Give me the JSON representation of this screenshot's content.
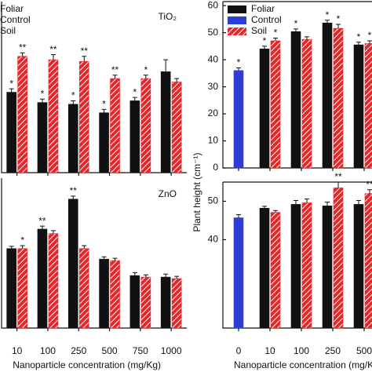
{
  "chart_data": [
    {
      "type": "bar",
      "title": "TiO₂",
      "ylim": [
        0,
        100
      ],
      "series": [
        {
          "name": "Foliar",
          "color": "#111111",
          "values": [
            47,
            41,
            40,
            35,
            42,
            59
          ],
          "errors": [
            2,
            2,
            2,
            2,
            2,
            7
          ],
          "labels": [
            "*",
            "*",
            "*",
            "*",
            "*",
            null
          ]
        },
        {
          "name": "Control",
          "color": "#2b3fd6",
          "values": [
            null,
            null,
            null,
            null,
            null,
            null
          ]
        },
        {
          "name": "Soil",
          "color": "#e8262a",
          "hatch": true,
          "values": [
            68,
            66,
            65,
            55,
            55,
            53
          ],
          "errors": [
            2,
            3,
            3,
            2,
            2,
            2
          ],
          "labels": [
            "**",
            "**",
            "**",
            "**",
            "*",
            null
          ]
        }
      ]
    },
    {
      "type": "bar",
      "title": "ZnO",
      "ylim": [
        0,
        100
      ],
      "categories": [
        "10",
        "100",
        "250",
        "500",
        "750",
        "1000"
      ],
      "xlabel": "Nanoparticle concentration (mg/Kg)",
      "series": [
        {
          "name": "Foliar",
          "color": "#111111",
          "values": [
            53,
            66,
            86,
            46,
            35,
            34
          ],
          "errors": [
            1.5,
            2,
            2,
            1.5,
            2,
            2
          ],
          "labels": [
            null,
            "**",
            "**",
            null,
            null,
            null
          ]
        },
        {
          "name": "Control",
          "color": "#2b3fd6",
          "values": [
            null,
            null,
            null,
            null,
            null,
            null
          ]
        },
        {
          "name": "Soil",
          "color": "#e8262a",
          "hatch": true,
          "values": [
            53,
            63,
            53,
            45,
            34,
            33
          ],
          "errors": [
            2,
            2,
            2,
            1.5,
            1.5,
            1.5
          ],
          "labels": [
            "*",
            null,
            null,
            null,
            null,
            null
          ]
        }
      ]
    },
    {
      "type": "bar",
      "ylim": [
        0,
        61.5
      ],
      "yticks": [
        0,
        10,
        20,
        30,
        40,
        50,
        60
      ],
      "legend": "upper left",
      "series": [
        {
          "name": "Foliar",
          "color": "#111111",
          "values": [
            null,
            44,
            50.4,
            53.6,
            45.5
          ],
          "errors": [
            null,
            1,
            1,
            1,
            1
          ],
          "labels": [
            null,
            "*",
            "*",
            "*",
            "*"
          ]
        },
        {
          "name": "Control",
          "color": "#2b3fd6",
          "values": [
            36,
            null,
            null,
            null,
            null
          ],
          "errors": [
            1,
            null,
            null,
            null,
            null
          ],
          "labels": [
            "*",
            null,
            null,
            null,
            null
          ]
        },
        {
          "name": "Soil",
          "color": "#e8262a",
          "hatch": true,
          "values": [
            null,
            47,
            47.5,
            51.6,
            46
          ],
          "errors": [
            null,
            1,
            1,
            1.5,
            1
          ],
          "labels": [
            null,
            "*",
            null,
            "*",
            "*"
          ]
        }
      ]
    },
    {
      "type": "bar",
      "ylim": [
        17,
        55
      ],
      "yticks": [
        40,
        50
      ],
      "ylabel": "Plant height (cm⁻¹)",
      "categories": [
        "0",
        "10",
        "100",
        "250",
        "500"
      ],
      "xlabel": "Nanoparticle concentration (mg/Kg)",
      "series": [
        {
          "name": "Foliar",
          "color": "#111111",
          "values": [
            null,
            48.2,
            49.2,
            48.8,
            49.2
          ],
          "errors": [
            null,
            0.5,
            1,
            1,
            1
          ]
        },
        {
          "name": "Control",
          "color": "#2b3fd6",
          "values": [
            45.7,
            null,
            null,
            null,
            null
          ],
          "errors": [
            0.8,
            null,
            null,
            null,
            null
          ]
        },
        {
          "name": "Soil",
          "color": "#e8262a",
          "hatch": true,
          "values": [
            null,
            47.1,
            49.6,
            53.5,
            52
          ],
          "errors": [
            null,
            0.5,
            1,
            1.5,
            1
          ],
          "labels": [
            null,
            null,
            null,
            "**",
            "**"
          ]
        }
      ]
    }
  ]
}
